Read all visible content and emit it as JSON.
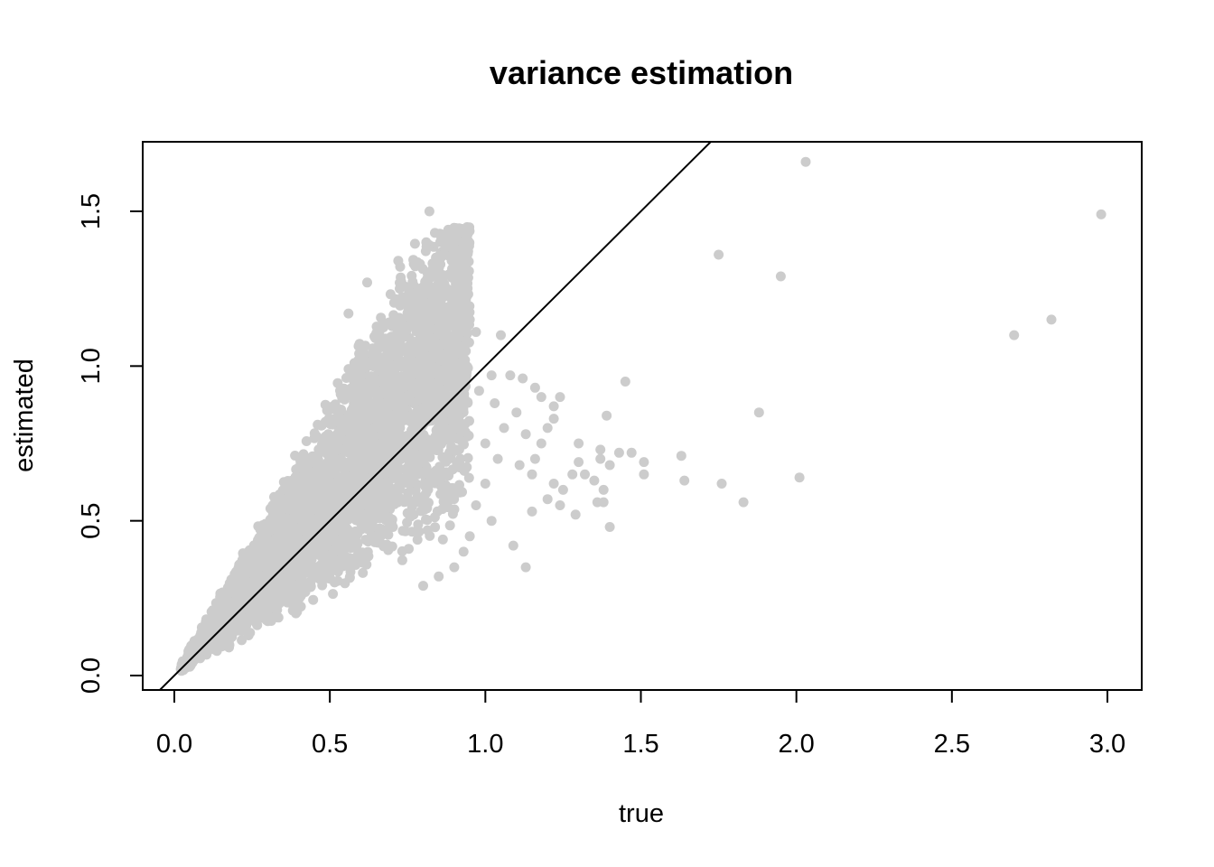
{
  "chart_data": {
    "type": "scatter",
    "title": "variance estimation",
    "xlabel": "true",
    "ylabel": "estimated",
    "xlim": [
      -0.1,
      3.1
    ],
    "ylim": [
      -0.05,
      1.72
    ],
    "x_ticks": [
      0.0,
      0.5,
      1.0,
      1.5,
      2.0,
      2.5,
      3.0
    ],
    "x_tick_labels": [
      "0.0",
      "0.5",
      "1.0",
      "1.5",
      "2.0",
      "2.5",
      "3.0"
    ],
    "y_ticks": [
      0.0,
      0.5,
      1.0,
      1.5
    ],
    "y_tick_labels": [
      "0.0",
      "0.5",
      "1.0",
      "1.5"
    ],
    "grid": false,
    "point_color": "#cccccc",
    "line_color": "#000000",
    "reference_line": {
      "intercept": 0,
      "slope": 1
    },
    "dense_cloud": {
      "count": 4000,
      "x_range": [
        0.02,
        0.95
      ],
      "ratio_low": 0.5,
      "ratio_high": 1.85
    },
    "outliers": [
      [
        0.82,
        1.5
      ],
      [
        0.81,
        1.4
      ],
      [
        0.9,
        1.4
      ],
      [
        0.62,
        1.27
      ],
      [
        0.56,
        1.17
      ],
      [
        0.72,
        1.34
      ],
      [
        0.77,
        1.33
      ],
      [
        0.79,
        1.33
      ],
      [
        0.86,
        1.25
      ],
      [
        0.92,
        1.15
      ],
      [
        0.95,
        1.15
      ],
      [
        0.97,
        1.11
      ],
      [
        1.05,
        1.1
      ],
      [
        1.02,
        0.97
      ],
      [
        1.08,
        0.97
      ],
      [
        1.12,
        0.96
      ],
      [
        1.16,
        0.93
      ],
      [
        1.18,
        0.9
      ],
      [
        1.24,
        0.9
      ],
      [
        1.22,
        0.87
      ],
      [
        1.1,
        0.85
      ],
      [
        1.2,
        0.8
      ],
      [
        1.22,
        0.83
      ],
      [
        1.13,
        0.78
      ],
      [
        1.18,
        0.75
      ],
      [
        1.16,
        0.7
      ],
      [
        1.11,
        0.68
      ],
      [
        1.15,
        0.65
      ],
      [
        1.22,
        0.62
      ],
      [
        1.25,
        0.6
      ],
      [
        1.28,
        0.65
      ],
      [
        1.3,
        0.69
      ],
      [
        1.32,
        0.65
      ],
      [
        1.35,
        0.63
      ],
      [
        1.37,
        0.7
      ],
      [
        1.4,
        0.68
      ],
      [
        1.38,
        0.6
      ],
      [
        1.36,
        0.56
      ],
      [
        1.29,
        0.52
      ],
      [
        1.24,
        0.55
      ],
      [
        1.2,
        0.57
      ],
      [
        1.15,
        0.53
      ],
      [
        1.09,
        0.42
      ],
      [
        1.13,
        0.35
      ],
      [
        1.3,
        0.75
      ],
      [
        1.37,
        0.73
      ],
      [
        1.43,
        0.72
      ],
      [
        1.47,
        0.72
      ],
      [
        1.51,
        0.69
      ],
      [
        1.51,
        0.65
      ],
      [
        1.39,
        0.84
      ],
      [
        1.45,
        0.95
      ],
      [
        1.4,
        0.48
      ],
      [
        1.38,
        0.56
      ],
      [
        1.63,
        0.71
      ],
      [
        1.64,
        0.63
      ],
      [
        1.75,
        1.36
      ],
      [
        1.76,
        0.62
      ],
      [
        1.83,
        0.56
      ],
      [
        1.88,
        0.85
      ],
      [
        1.95,
        1.29
      ],
      [
        2.01,
        0.64
      ],
      [
        2.03,
        1.66
      ],
      [
        2.7,
        1.1
      ],
      [
        2.82,
        1.15
      ],
      [
        2.98,
        1.49
      ],
      [
        1.03,
        0.88
      ],
      [
        1.06,
        0.8
      ],
      [
        1.0,
        0.75
      ],
      [
        1.04,
        0.7
      ],
      [
        1.0,
        0.62
      ],
      [
        0.97,
        0.55
      ],
      [
        1.02,
        0.5
      ],
      [
        0.95,
        0.45
      ],
      [
        0.93,
        0.4
      ],
      [
        0.9,
        0.35
      ],
      [
        0.85,
        0.32
      ],
      [
        0.8,
        0.29
      ],
      [
        0.88,
        0.6
      ],
      [
        0.92,
        0.7
      ],
      [
        0.98,
        0.92
      ]
    ]
  }
}
